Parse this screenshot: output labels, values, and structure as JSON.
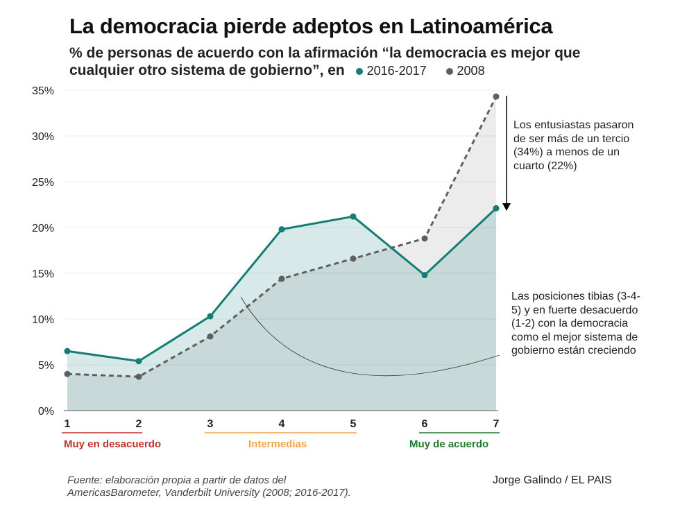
{
  "title": "La democracia pierde adeptos en Latinoamérica",
  "subtitle": "% de personas de acuerdo con la afirmación “la democracia es mejor que cualquier otro sistema de gobierno”, en",
  "chart_data": {
    "type": "line",
    "x": [
      1,
      2,
      3,
      4,
      5,
      6,
      7
    ],
    "x_tick_labels": [
      "1",
      "2",
      "3",
      "4",
      "5",
      "6",
      "7"
    ],
    "y_tick_labels": [
      "0%",
      "5%",
      "10%",
      "15%",
      "20%",
      "25%",
      "30%",
      "35%"
    ],
    "ylim": [
      0,
      35
    ],
    "grid": true,
    "legend_placement": "in subtitle",
    "series": [
      {
        "name": "2016-2017",
        "color": "#147d74",
        "style": "solid",
        "values": [
          6.5,
          5.4,
          10.3,
          19.8,
          21.2,
          14.8,
          22.1
        ]
      },
      {
        "name": "2008",
        "color": "#5f5f5f",
        "style": "dashed",
        "values": [
          4.0,
          3.7,
          8.1,
          14.4,
          16.6,
          18.8,
          34.3
        ]
      }
    ],
    "groups": [
      {
        "label": "Muy en desacuerdo",
        "from": 1,
        "to": 2,
        "color": "#c0312b"
      },
      {
        "label": "Intermedias",
        "from": 3,
        "to": 5,
        "color": "#f2a54a"
      },
      {
        "label": "Muy de acuerdo",
        "from": 6,
        "to": 7,
        "color": "#1f7a2a"
      }
    ],
    "annotations": [
      "Los entusiastas pasaron de ser más de un tercio (34%) a menos de un cuarto (22%)",
      "Las posiciones tibias (3-4-5) y en fuerte desacuerdo (1-2) con la democracia como el mejor sistema de gobierno están creciendo"
    ]
  },
  "source": "Fuente: elaboración propia a partir de datos del AmericasBarometer, Vanderbilt University (2008; 2016-2017).",
  "credit": "Jorge Galindo / EL PAIS"
}
